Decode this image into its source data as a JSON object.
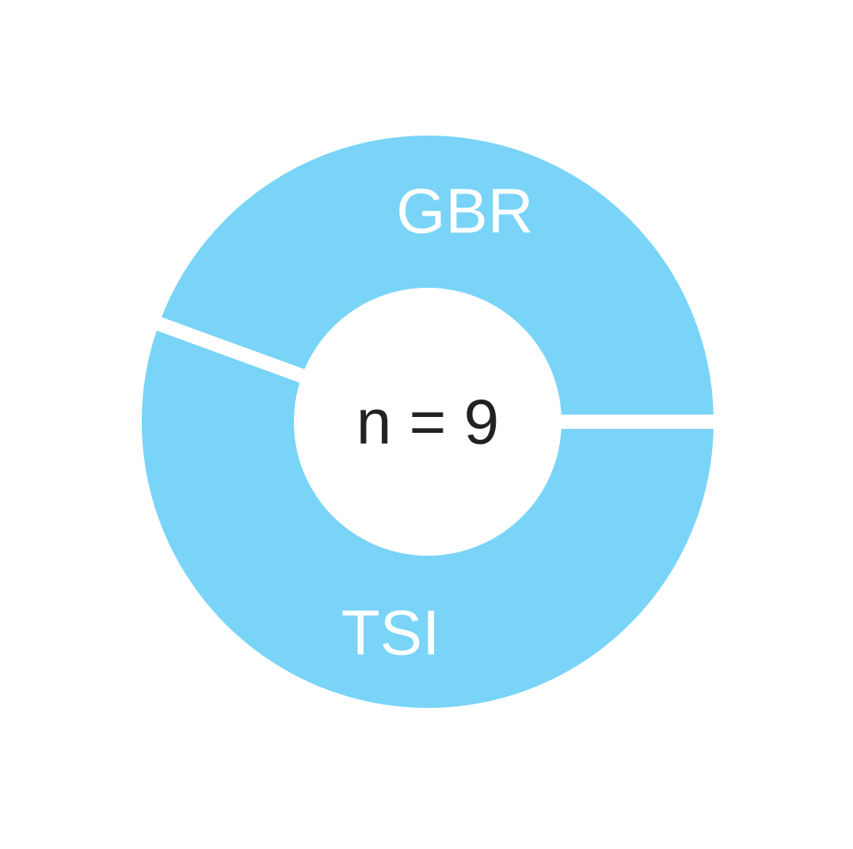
{
  "chart_data": {
    "type": "pie",
    "donut": true,
    "center_text": "n = 9",
    "categories": [
      "GBR",
      "TSI"
    ],
    "values": [
      4,
      5
    ],
    "colors": [
      "#79d4f7",
      "#79d4f7"
    ],
    "separator_color": "#ffffff",
    "center_text_color": "#222222",
    "label_color": "#ffffff",
    "title": "",
    "legend": false
  }
}
